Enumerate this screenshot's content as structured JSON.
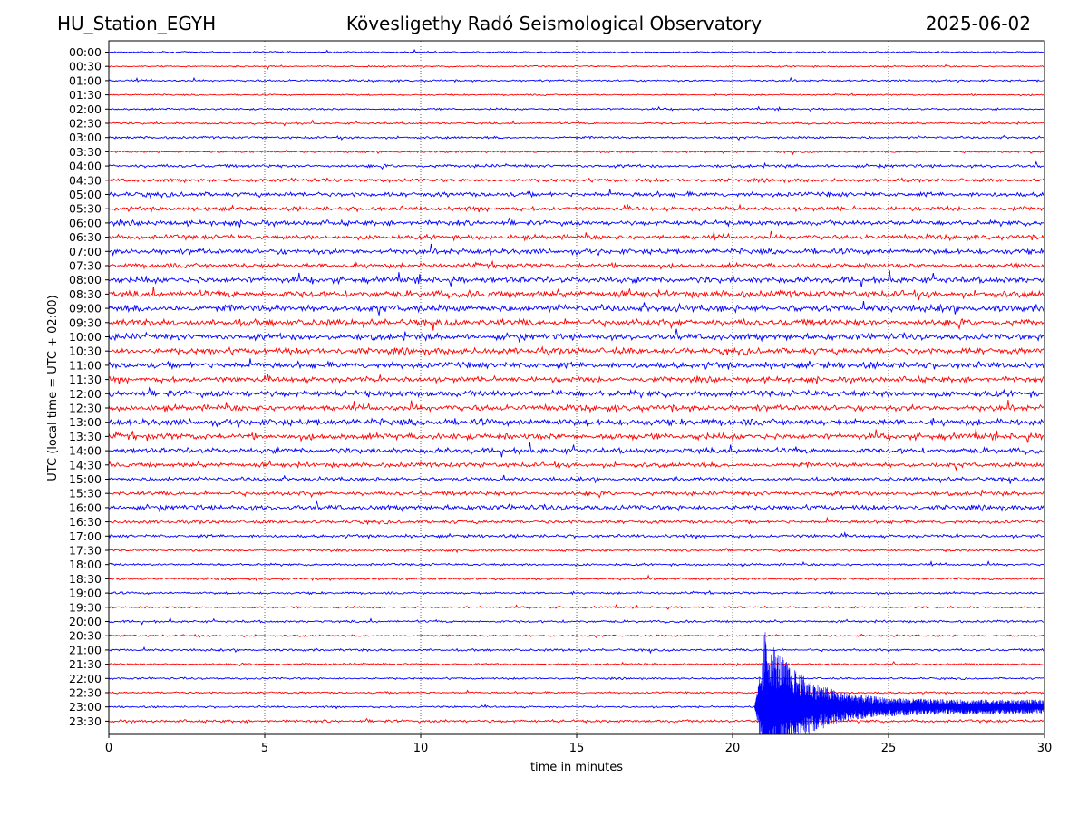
{
  "header": {
    "station": "HU_Station_EGYH",
    "title": "Kövesligethy Radó Seismological Observatory",
    "date": "2025-06-02"
  },
  "chart_data": {
    "type": "line",
    "chart_kind": "helicorder",
    "xlabel": "time in minutes",
    "ylabel": "UTC (local time = UTC + 02:00)",
    "xlim": [
      0,
      30
    ],
    "x_ticks": [
      "0",
      "5",
      "10",
      "15",
      "20",
      "25",
      "30"
    ],
    "vertical_gridlines_at_minutes": [
      5,
      10,
      15,
      20,
      25
    ],
    "grid": "vertical dotted",
    "trace_colors": [
      "#0000ff",
      "#ff0000"
    ],
    "rows": [
      {
        "label": "00:00",
        "color": "#0000ff",
        "noise_level": 0.4
      },
      {
        "label": "00:30",
        "color": "#ff0000",
        "noise_level": 0.4
      },
      {
        "label": "01:00",
        "color": "#0000ff",
        "noise_level": 0.5
      },
      {
        "label": "01:30",
        "color": "#ff0000",
        "noise_level": 0.4
      },
      {
        "label": "02:00",
        "color": "#0000ff",
        "noise_level": 0.5
      },
      {
        "label": "02:30",
        "color": "#ff0000",
        "noise_level": 0.5
      },
      {
        "label": "03:00",
        "color": "#0000ff",
        "noise_level": 0.6
      },
      {
        "label": "03:30",
        "color": "#ff0000",
        "noise_level": 0.5
      },
      {
        "label": "04:00",
        "color": "#0000ff",
        "noise_level": 0.8
      },
      {
        "label": "04:30",
        "color": "#ff0000",
        "noise_level": 0.9
      },
      {
        "label": "05:00",
        "color": "#0000ff",
        "noise_level": 1.2
      },
      {
        "label": "05:30",
        "color": "#ff0000",
        "noise_level": 1.1
      },
      {
        "label": "06:00",
        "color": "#0000ff",
        "noise_level": 1.3
      },
      {
        "label": "06:30",
        "color": "#ff0000",
        "noise_level": 1.2
      },
      {
        "label": "07:00",
        "color": "#0000ff",
        "noise_level": 1.4
      },
      {
        "label": "07:30",
        "color": "#ff0000",
        "noise_level": 1.2
      },
      {
        "label": "08:00",
        "color": "#0000ff",
        "noise_level": 1.6
      },
      {
        "label": "08:30",
        "color": "#ff0000",
        "noise_level": 1.7
      },
      {
        "label": "09:00",
        "color": "#0000ff",
        "noise_level": 1.8
      },
      {
        "label": "09:30",
        "color": "#ff0000",
        "noise_level": 1.7
      },
      {
        "label": "10:00",
        "color": "#0000ff",
        "noise_level": 1.6
      },
      {
        "label": "10:30",
        "color": "#ff0000",
        "noise_level": 1.6
      },
      {
        "label": "11:00",
        "color": "#0000ff",
        "noise_level": 1.6
      },
      {
        "label": "11:30",
        "color": "#ff0000",
        "noise_level": 1.4
      },
      {
        "label": "12:00",
        "color": "#0000ff",
        "noise_level": 1.6
      },
      {
        "label": "12:30",
        "color": "#ff0000",
        "noise_level": 1.5
      },
      {
        "label": "13:00",
        "color": "#0000ff",
        "noise_level": 1.7
      },
      {
        "label": "13:30",
        "color": "#ff0000",
        "noise_level": 1.6
      },
      {
        "label": "14:00",
        "color": "#0000ff",
        "noise_level": 1.4
      },
      {
        "label": "14:30",
        "color": "#ff0000",
        "noise_level": 1.2
      },
      {
        "label": "15:00",
        "color": "#0000ff",
        "noise_level": 1.0
      },
      {
        "label": "15:30",
        "color": "#ff0000",
        "noise_level": 1.1
      },
      {
        "label": "16:00",
        "color": "#0000ff",
        "noise_level": 1.3
      },
      {
        "label": "16:30",
        "color": "#ff0000",
        "noise_level": 0.9
      },
      {
        "label": "17:00",
        "color": "#0000ff",
        "noise_level": 0.8
      },
      {
        "label": "17:30",
        "color": "#ff0000",
        "noise_level": 0.6
      },
      {
        "label": "18:00",
        "color": "#0000ff",
        "noise_level": 0.6
      },
      {
        "label": "18:30",
        "color": "#ff0000",
        "noise_level": 0.6
      },
      {
        "label": "19:00",
        "color": "#0000ff",
        "noise_level": 0.6
      },
      {
        "label": "19:30",
        "color": "#ff0000",
        "noise_level": 0.5
      },
      {
        "label": "20:00",
        "color": "#0000ff",
        "noise_level": 0.6
      },
      {
        "label": "20:30",
        "color": "#ff0000",
        "noise_level": 0.5
      },
      {
        "label": "21:00",
        "color": "#0000ff",
        "noise_level": 0.6
      },
      {
        "label": "21:30",
        "color": "#ff0000",
        "noise_level": 0.5
      },
      {
        "label": "22:00",
        "color": "#0000ff",
        "noise_level": 0.5
      },
      {
        "label": "22:30",
        "color": "#ff0000",
        "noise_level": 0.5
      },
      {
        "label": "23:00",
        "color": "#0000ff",
        "noise_level": 0.5
      },
      {
        "label": "23:30",
        "color": "#ff0000",
        "noise_level": 0.7
      }
    ],
    "event": {
      "row_label": "23:00",
      "color": "#0000ff",
      "onset_minute": 20.7,
      "peak_minute": 21.0,
      "coda_end_minute": 30
    }
  }
}
